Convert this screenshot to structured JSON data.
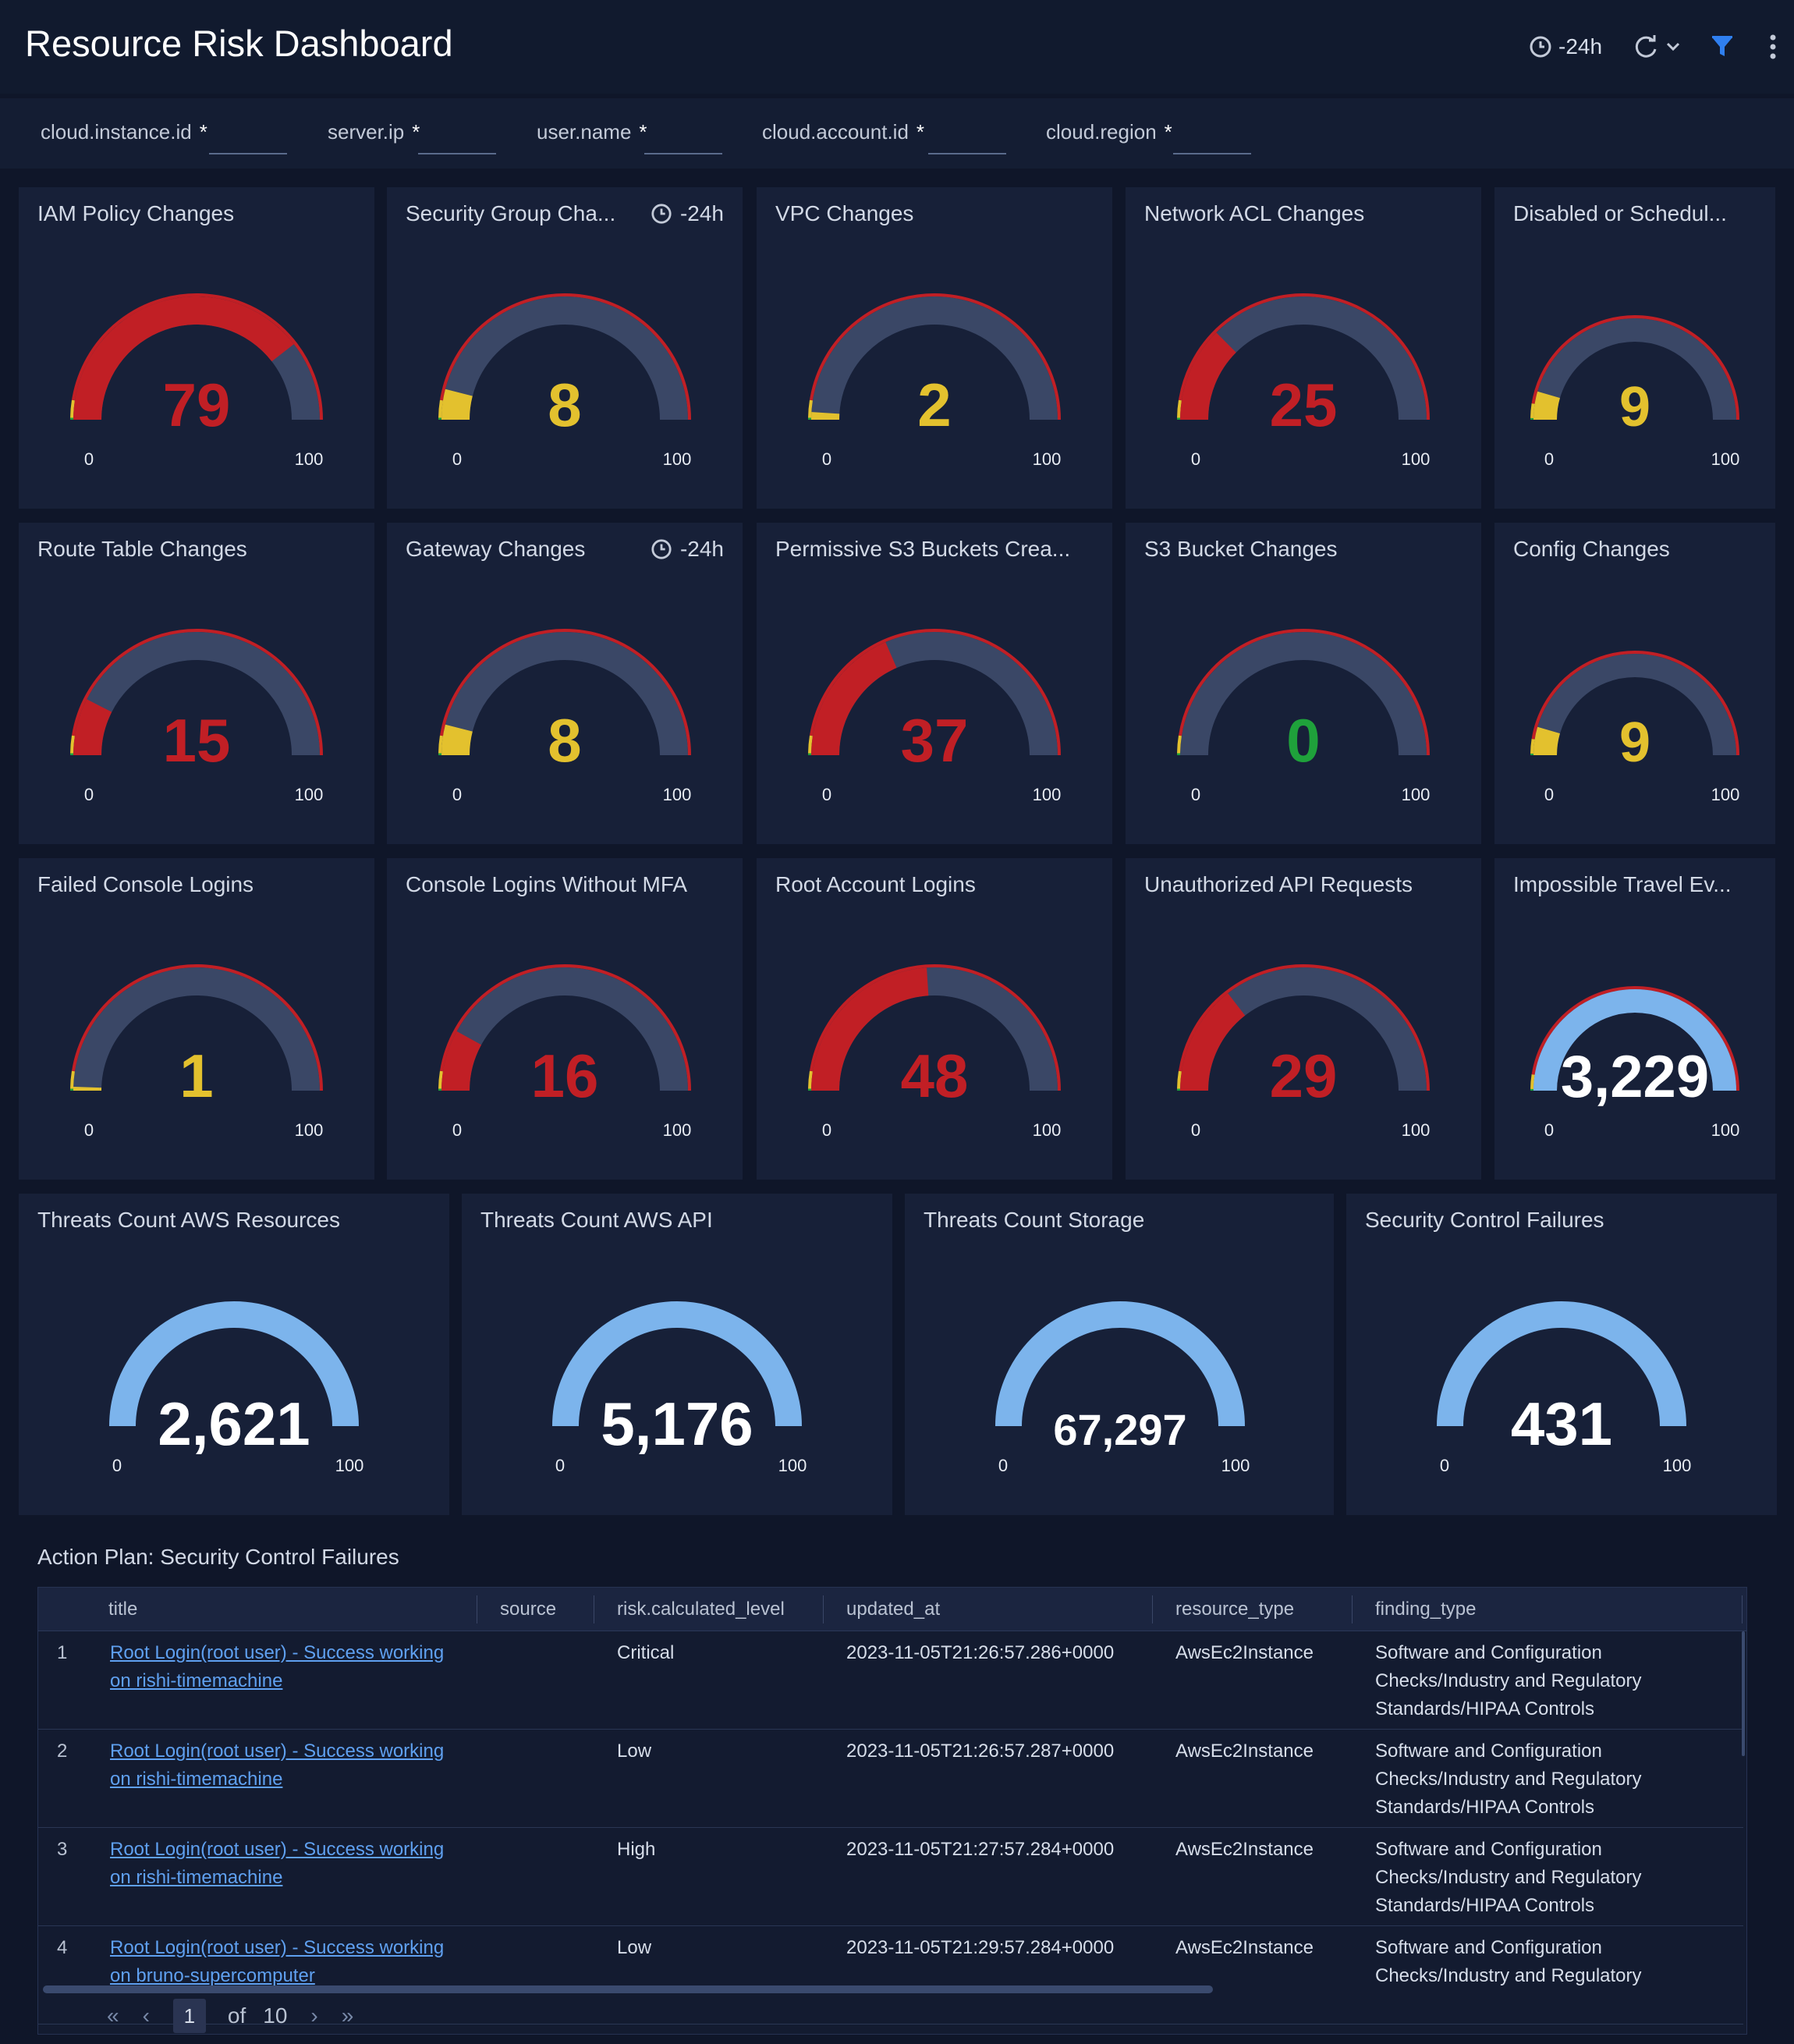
{
  "header": {
    "title": "Resource Risk Dashboard",
    "time_range": "-24h"
  },
  "filters": [
    {
      "name": "cloud.instance.id",
      "value": "*"
    },
    {
      "name": "server.ip",
      "value": "*"
    },
    {
      "name": "user.name",
      "value": "*"
    },
    {
      "name": "cloud.account.id",
      "value": "*"
    },
    {
      "name": "cloud.region",
      "value": "*"
    }
  ],
  "colors": {
    "red": "#c11f25",
    "yellow": "#e3c12e",
    "green": "#1fa13b",
    "blue": "#7cb4ec",
    "track": "#3a4766"
  },
  "gauges": [
    {
      "title": "IAM Policy Changes",
      "value": "79",
      "level": 79,
      "min": "0",
      "max": "100",
      "color": "red",
      "time": ""
    },
    {
      "title": "Security Group Cha...",
      "value": "8",
      "level": 8,
      "min": "0",
      "max": "100",
      "color": "yellow",
      "time": "-24h"
    },
    {
      "title": "VPC Changes",
      "value": "2",
      "level": 2,
      "min": "0",
      "max": "100",
      "color": "yellow",
      "time": ""
    },
    {
      "title": "Network ACL Changes",
      "value": "25",
      "level": 25,
      "min": "0",
      "max": "100",
      "color": "red",
      "time": ""
    },
    {
      "title": "Disabled or Schedul...",
      "value": "9",
      "level": 9,
      "min": "0",
      "max": "100",
      "color": "yellow",
      "time": ""
    },
    {
      "title": "Route Table Changes",
      "value": "15",
      "level": 15,
      "min": "0",
      "max": "100",
      "color": "red",
      "time": ""
    },
    {
      "title": "Gateway Changes",
      "value": "8",
      "level": 8,
      "min": "0",
      "max": "100",
      "color": "yellow",
      "time": "-24h"
    },
    {
      "title": "Permissive S3 Buckets Crea...",
      "value": "37",
      "level": 37,
      "min": "0",
      "max": "100",
      "color": "red",
      "time": ""
    },
    {
      "title": "S3 Bucket Changes",
      "value": "0",
      "level": 0,
      "min": "0",
      "max": "100",
      "color": "green",
      "time": ""
    },
    {
      "title": "Config Changes",
      "value": "9",
      "level": 9,
      "min": "0",
      "max": "100",
      "color": "yellow",
      "time": ""
    },
    {
      "title": "Failed Console Logins",
      "value": "1",
      "level": 1,
      "min": "0",
      "max": "100",
      "color": "yellow",
      "time": ""
    },
    {
      "title": "Console Logins Without MFA",
      "value": "16",
      "level": 16,
      "min": "0",
      "max": "100",
      "color": "red",
      "time": ""
    },
    {
      "title": "Root Account Logins",
      "value": "48",
      "level": 48,
      "min": "0",
      "max": "100",
      "color": "red",
      "time": ""
    },
    {
      "title": "Unauthorized API Requests",
      "value": "29",
      "level": 29,
      "min": "0",
      "max": "100",
      "color": "red",
      "time": ""
    },
    {
      "title": "Impossible Travel Ev...",
      "value": "3,229",
      "level": 100,
      "min": "0",
      "max": "100",
      "color": "white",
      "time": ""
    }
  ],
  "big_gauges": [
    {
      "title": "Threats Count AWS Resources",
      "value": "2,621",
      "min": "0",
      "max": "100"
    },
    {
      "title": "Threats Count AWS API",
      "value": "5,176",
      "min": "0",
      "max": "100"
    },
    {
      "title": "Threats Count Storage",
      "value": "67,297",
      "min": "0",
      "max": "100"
    },
    {
      "title": "Security Control Failures",
      "value": "431",
      "min": "0",
      "max": "100"
    }
  ],
  "table": {
    "title": "Action Plan: Security Control Failures",
    "columns": [
      "title",
      "source",
      "risk.calculated_level",
      "updated_at",
      "resource_type",
      "finding_type"
    ],
    "rows": [
      {
        "n": "1",
        "title1": "Root Login(root user) - Success working",
        "title2": "on rishi-timemachine",
        "source": "",
        "risk": "Critical",
        "updated": "2023-11-05T21:26:57.286+0000",
        "rtype": "AwsEc2Instance",
        "f1": "Software and Configuration",
        "f2": "Checks/Industry and Regulatory",
        "f3": "Standards/HIPAA Controls"
      },
      {
        "n": "2",
        "title1": "Root Login(root user) - Success working",
        "title2": "on rishi-timemachine",
        "source": "",
        "risk": "Low",
        "updated": "2023-11-05T21:26:57.287+0000",
        "rtype": "AwsEc2Instance",
        "f1": "Software and Configuration",
        "f2": "Checks/Industry and Regulatory",
        "f3": "Standards/HIPAA Controls"
      },
      {
        "n": "3",
        "title1": "Root Login(root user) - Success working",
        "title2": "on rishi-timemachine",
        "source": "",
        "risk": "High",
        "updated": "2023-11-05T21:27:57.284+0000",
        "rtype": "AwsEc2Instance",
        "f1": "Software and Configuration",
        "f2": "Checks/Industry and Regulatory",
        "f3": "Standards/HIPAA Controls"
      },
      {
        "n": "4",
        "title1": "Root Login(root user) - Success working",
        "title2": "on bruno-supercomputer",
        "source": "",
        "risk": "Low",
        "updated": "2023-11-05T21:29:57.284+0000",
        "rtype": "AwsEc2Instance",
        "f1": "Software and Configuration",
        "f2": "Checks/Industry and Regulatory",
        "f3": ""
      }
    ],
    "pager": {
      "page": "1",
      "of_label": "of",
      "total": "10"
    }
  }
}
